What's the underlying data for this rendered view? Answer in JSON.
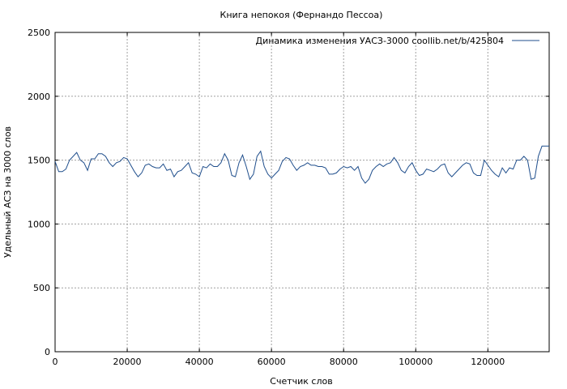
{
  "chart_data": {
    "type": "line",
    "title": "Книга непокоя (Фернандо Пессоа)",
    "xlabel": "Счетчик слов",
    "ylabel": "Удельный АСЗ на 3000 слов",
    "xlim": [
      0,
      137000
    ],
    "ylim": [
      0,
      2500
    ],
    "x_ticks": [
      0,
      20000,
      40000,
      60000,
      80000,
      100000,
      120000
    ],
    "y_ticks": [
      0,
      500,
      1000,
      1500,
      2000,
      2500
    ],
    "grid": true,
    "legend_position": "top-right",
    "series": [
      {
        "name": "Динамика изменения УАСЗ-3000  coollib.net/b/425804",
        "color": "#1f4e8c",
        "x": [
          0,
          1000,
          2000,
          3000,
          4000,
          5000,
          6000,
          7000,
          8000,
          9000,
          10000,
          11000,
          12000,
          13000,
          14000,
          15000,
          16000,
          17000,
          18000,
          19000,
          20000,
          21000,
          22000,
          23000,
          24000,
          25000,
          26000,
          27000,
          28000,
          29000,
          30000,
          31000,
          32000,
          33000,
          34000,
          35000,
          36000,
          37000,
          38000,
          39000,
          40000,
          41000,
          42000,
          43000,
          44000,
          45000,
          46000,
          47000,
          48000,
          49000,
          50000,
          51000,
          52000,
          53000,
          54000,
          55000,
          56000,
          57000,
          58000,
          59000,
          60000,
          61000,
          62000,
          63000,
          64000,
          65000,
          66000,
          67000,
          68000,
          69000,
          70000,
          71000,
          72000,
          73000,
          74000,
          75000,
          76000,
          77000,
          78000,
          79000,
          80000,
          81000,
          82000,
          83000,
          84000,
          85000,
          86000,
          87000,
          88000,
          89000,
          90000,
          91000,
          92000,
          93000,
          94000,
          95000,
          96000,
          97000,
          98000,
          99000,
          100000,
          101000,
          102000,
          103000,
          104000,
          105000,
          106000,
          107000,
          108000,
          109000,
          110000,
          111000,
          112000,
          113000,
          114000,
          115000,
          116000,
          117000,
          118000,
          119000,
          120000,
          121000,
          122000,
          123000,
          124000,
          125000,
          126000,
          127000,
          128000,
          129000,
          130000,
          131000,
          132000,
          133000,
          134000,
          135000,
          136000,
          137000
        ],
        "values": [
          1490,
          1410,
          1410,
          1430,
          1500,
          1530,
          1560,
          1500,
          1480,
          1420,
          1510,
          1510,
          1550,
          1550,
          1530,
          1480,
          1450,
          1480,
          1490,
          1520,
          1510,
          1460,
          1410,
          1370,
          1400,
          1460,
          1470,
          1450,
          1440,
          1440,
          1470,
          1420,
          1430,
          1370,
          1410,
          1420,
          1450,
          1480,
          1400,
          1390,
          1370,
          1450,
          1440,
          1470,
          1450,
          1450,
          1480,
          1550,
          1500,
          1380,
          1370,
          1480,
          1540,
          1450,
          1350,
          1390,
          1530,
          1570,
          1450,
          1390,
          1360,
          1390,
          1420,
          1490,
          1520,
          1510,
          1460,
          1420,
          1450,
          1460,
          1480,
          1460,
          1460,
          1450,
          1450,
          1440,
          1390,
          1390,
          1400,
          1430,
          1450,
          1440,
          1450,
          1420,
          1450,
          1360,
          1320,
          1350,
          1420,
          1450,
          1470,
          1450,
          1470,
          1480,
          1520,
          1480,
          1420,
          1400,
          1450,
          1480,
          1420,
          1380,
          1390,
          1430,
          1420,
          1410,
          1430,
          1460,
          1470,
          1400,
          1370,
          1400,
          1430,
          1460,
          1480,
          1470,
          1400,
          1380,
          1380,
          1500,
          1460,
          1420,
          1390,
          1370,
          1440,
          1400,
          1440,
          1430,
          1500,
          1500,
          1530,
          1500,
          1350,
          1360,
          1530,
          1610,
          1610,
          1610
        ]
      }
    ]
  }
}
